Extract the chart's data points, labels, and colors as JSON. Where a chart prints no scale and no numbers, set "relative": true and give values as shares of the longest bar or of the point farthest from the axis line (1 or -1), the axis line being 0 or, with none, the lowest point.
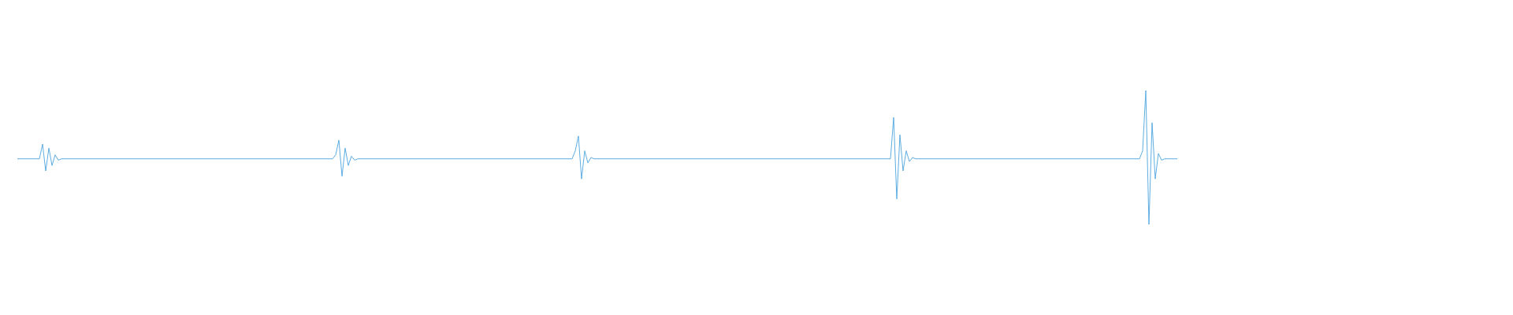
{
  "chart_data": {
    "type": "line",
    "relative": true,
    "tick_labels": false,
    "grid": false,
    "legend": false,
    "categories": [
      null,
      null,
      null,
      null,
      null,
      null,
      null,
      null,
      null,
      null,
      null,
      null,
      null,
      null,
      null,
      null,
      null,
      null,
      null,
      null,
      null,
      null,
      null,
      null,
      null,
      null,
      null,
      null,
      null,
      null,
      null,
      null,
      null,
      null,
      null,
      null,
      null,
      null,
      null,
      null,
      null,
      null,
      null,
      null,
      null,
      null,
      null,
      null,
      null,
      null,
      null,
      null,
      null,
      null,
      null,
      null,
      null,
      null,
      null,
      null,
      null,
      null,
      null,
      null,
      null,
      null,
      null,
      null,
      null,
      null,
      null,
      null,
      null,
      null,
      null,
      null,
      null,
      null,
      null,
      null,
      null,
      null,
      null,
      null,
      null,
      null,
      null,
      null,
      null,
      null,
      null,
      null,
      null,
      null,
      null,
      null,
      null,
      null,
      null,
      null,
      null,
      null,
      null,
      null,
      null,
      null,
      null,
      null,
      null,
      null,
      null,
      null,
      null,
      null,
      null,
      null,
      null,
      null,
      null,
      null,
      null,
      null,
      null,
      null,
      null,
      null,
      null,
      null,
      null,
      null,
      null,
      null,
      null,
      null,
      null,
      null,
      null,
      null,
      null,
      null,
      null,
      null,
      null,
      null,
      null,
      null,
      null,
      null,
      null,
      null,
      null,
      null,
      null,
      null,
      null,
      null,
      null,
      null,
      null,
      null,
      null,
      null,
      null,
      null,
      null,
      null,
      null,
      null,
      null,
      null,
      null,
      null,
      null,
      null,
      null,
      null,
      null,
      null,
      null,
      null,
      null,
      null,
      null,
      null,
      null,
      null,
      null,
      null,
      null,
      null,
      null,
      null,
      null,
      null,
      null,
      null,
      null,
      null,
      null,
      null,
      null,
      null,
      null,
      null,
      null,
      null,
      null,
      null,
      null,
      null,
      null,
      null,
      null,
      null,
      null,
      null,
      null,
      null,
      null,
      null,
      null,
      null,
      null,
      null,
      null,
      null,
      null,
      null,
      null,
      null,
      null,
      null,
      null,
      null,
      null,
      null,
      null,
      null,
      null,
      null,
      null,
      null,
      null,
      null,
      null,
      null,
      null,
      null,
      null,
      null,
      null,
      null,
      null,
      null,
      null,
      null,
      null,
      null,
      null,
      null,
      null,
      null,
      null,
      null,
      null,
      null,
      null,
      null,
      null,
      null,
      null,
      null,
      null,
      null,
      null,
      null,
      null,
      null,
      null,
      null,
      null,
      null,
      null,
      null,
      null,
      null,
      null,
      null,
      null,
      null,
      null,
      null,
      null,
      null,
      null,
      null,
      null,
      null,
      null,
      null,
      null,
      null,
      null,
      null,
      null,
      null,
      null,
      null,
      null,
      null,
      null,
      null,
      null,
      null,
      null,
      null,
      null,
      null,
      null,
      null,
      null,
      null,
      null,
      null,
      null,
      null,
      null,
      null,
      null,
      null,
      null,
      null,
      null,
      null,
      null,
      null,
      null,
      null,
      null,
      null,
      null,
      null,
      null,
      null,
      null,
      null,
      null,
      null,
      null,
      null,
      null,
      null,
      null,
      null,
      null,
      null,
      null,
      null,
      null,
      null,
      null,
      null,
      null,
      null,
      null,
      null,
      null,
      null,
      null
    ],
    "series": [
      {
        "color": "#5dade2",
        "values": [
          0.49,
          0.49,
          0.49,
          0.49,
          0.49,
          0.49,
          0.49,
          0.49,
          0.6,
          0.4,
          0.57,
          0.44,
          0.52,
          0.48,
          0.49,
          0.49,
          0.49,
          0.49,
          0.49,
          0.49,
          0.49,
          0.49,
          0.49,
          0.49,
          0.49,
          0.49,
          0.49,
          0.49,
          0.49,
          0.49,
          0.49,
          0.49,
          0.49,
          0.49,
          0.49,
          0.49,
          0.49,
          0.49,
          0.49,
          0.49,
          0.49,
          0.49,
          0.49,
          0.49,
          0.49,
          0.49,
          0.49,
          0.49,
          0.49,
          0.49,
          0.49,
          0.49,
          0.49,
          0.49,
          0.49,
          0.49,
          0.49,
          0.49,
          0.49,
          0.49,
          0.49,
          0.49,
          0.49,
          0.49,
          0.49,
          0.49,
          0.49,
          0.49,
          0.49,
          0.49,
          0.49,
          0.49,
          0.49,
          0.49,
          0.49,
          0.49,
          0.49,
          0.49,
          0.49,
          0.49,
          0.49,
          0.49,
          0.49,
          0.49,
          0.49,
          0.49,
          0.49,
          0.49,
          0.49,
          0.49,
          0.49,
          0.49,
          0.49,
          0.49,
          0.49,
          0.49,
          0.49,
          0.49,
          0.49,
          0.49,
          0.49,
          0.52,
          0.63,
          0.36,
          0.57,
          0.44,
          0.51,
          0.48,
          0.49,
          0.49,
          0.49,
          0.49,
          0.49,
          0.49,
          0.49,
          0.49,
          0.49,
          0.49,
          0.49,
          0.49,
          0.49,
          0.49,
          0.49,
          0.49,
          0.49,
          0.49,
          0.49,
          0.49,
          0.49,
          0.49,
          0.49,
          0.49,
          0.49,
          0.49,
          0.49,
          0.49,
          0.49,
          0.49,
          0.49,
          0.49,
          0.49,
          0.49,
          0.49,
          0.49,
          0.49,
          0.49,
          0.49,
          0.49,
          0.49,
          0.49,
          0.49,
          0.49,
          0.49,
          0.49,
          0.49,
          0.49,
          0.49,
          0.49,
          0.49,
          0.49,
          0.49,
          0.49,
          0.49,
          0.49,
          0.49,
          0.49,
          0.49,
          0.49,
          0.49,
          0.49,
          0.49,
          0.49,
          0.49,
          0.49,
          0.49,
          0.49,
          0.49,
          0.55,
          0.66,
          0.34,
          0.55,
          0.46,
          0.5,
          0.49,
          0.49,
          0.49,
          0.49,
          0.49,
          0.49,
          0.49,
          0.49,
          0.49,
          0.49,
          0.49,
          0.49,
          0.49,
          0.49,
          0.49,
          0.49,
          0.49,
          0.49,
          0.49,
          0.49,
          0.49,
          0.49,
          0.49,
          0.49,
          0.49,
          0.49,
          0.49,
          0.49,
          0.49,
          0.49,
          0.49,
          0.49,
          0.49,
          0.49,
          0.49,
          0.49,
          0.49,
          0.49,
          0.49,
          0.49,
          0.49,
          0.49,
          0.49,
          0.49,
          0.49,
          0.49,
          0.49,
          0.49,
          0.49,
          0.49,
          0.49,
          0.49,
          0.49,
          0.49,
          0.49,
          0.49,
          0.49,
          0.49,
          0.49,
          0.49,
          0.49,
          0.49,
          0.49,
          0.49,
          0.49,
          0.49,
          0.49,
          0.49,
          0.49,
          0.49,
          0.49,
          0.49,
          0.49,
          0.49,
          0.49,
          0.49,
          0.49,
          0.49,
          0.49,
          0.49,
          0.49,
          0.49,
          0.49,
          0.49,
          0.49,
          0.49,
          0.49,
          0.49,
          0.49,
          0.49,
          0.49,
          0.49,
          0.49,
          0.49,
          0.49,
          0.8,
          0.19,
          0.67,
          0.4,
          0.55,
          0.47,
          0.5,
          0.49,
          0.49,
          0.49,
          0.49,
          0.49,
          0.49,
          0.49,
          0.49,
          0.49,
          0.49,
          0.49,
          0.49,
          0.49,
          0.49,
          0.49,
          0.49,
          0.49,
          0.49,
          0.49,
          0.49,
          0.49,
          0.49,
          0.49,
          0.49,
          0.49,
          0.49,
          0.49,
          0.49,
          0.49,
          0.49,
          0.49,
          0.49,
          0.49,
          0.49,
          0.49,
          0.49,
          0.49,
          0.49,
          0.49,
          0.49,
          0.49,
          0.49,
          0.49,
          0.49,
          0.49,
          0.49,
          0.49,
          0.49,
          0.49,
          0.49,
          0.49,
          0.49,
          0.49,
          0.49,
          0.49,
          0.49,
          0.49,
          0.49,
          0.49,
          0.49,
          0.49,
          0.49,
          0.49,
          0.49,
          0.49,
          0.49,
          0.49,
          0.49,
          0.49,
          0.49,
          0.49,
          0.49,
          0.55,
          1,
          0,
          0.76,
          0.34,
          0.53,
          0.48,
          0.49,
          0.49,
          0.49,
          0.49,
          0.49
        ]
      }
    ]
  }
}
